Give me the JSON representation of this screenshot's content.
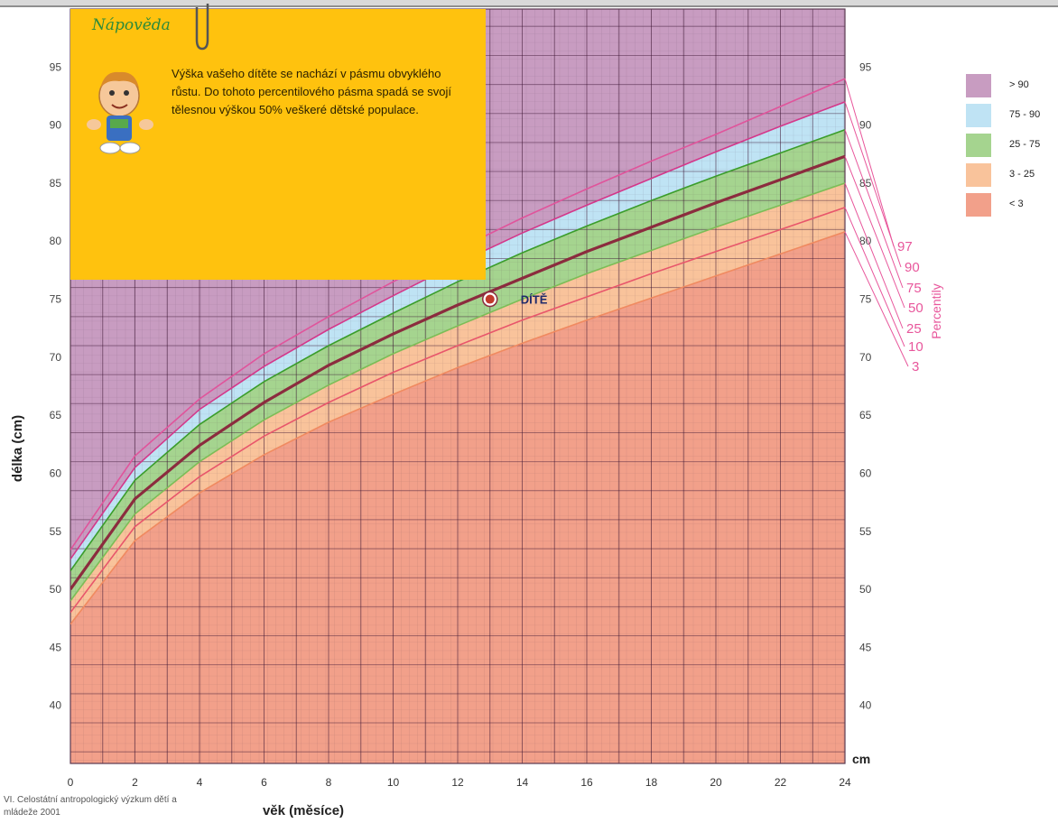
{
  "tooltip": {
    "title": "Nápověda",
    "text": "Výška vašeho dítěte se nachází v pásmu obvyklého růstu. Do tohoto percentilového pásma spadá se svojí tělesnou výškou 50% veškeré dětské populace."
  },
  "legend": [
    {
      "label": "> 90",
      "color": "#c89cc1"
    },
    {
      "label": "75 - 90",
      "color": "#bfe3f4"
    },
    {
      "label": "25 - 75",
      "color": "#a5d48f"
    },
    {
      "label": "3 - 25",
      "color": "#f9c39b"
    },
    {
      "label": "< 3",
      "color": "#f2a08a"
    }
  ],
  "source_text": "VI. Celostátní antropologický výzkum dětí a mládeže 2001",
  "chart_data": {
    "type": "line",
    "xlabel": "věk (měsíce)",
    "ylabel": "délka (cm)",
    "y_unit": "cm",
    "percentile_axis_label": "Percentily",
    "xlim": [
      0,
      24
    ],
    "ylim": [
      35,
      100
    ],
    "x_ticks": [
      "0",
      "2",
      "4",
      "6",
      "8",
      "10",
      "12",
      "14",
      "16",
      "18",
      "20",
      "22",
      "24"
    ],
    "y_ticks": [
      "40",
      "45",
      "50",
      "55",
      "60",
      "65",
      "70",
      "75",
      "80",
      "85",
      "90",
      "95"
    ],
    "x": [
      0,
      2,
      4,
      6,
      8,
      10,
      12,
      14,
      16,
      18,
      20,
      22,
      24
    ],
    "series": [
      {
        "name": "97",
        "color": "#e0549b",
        "values": [
          53.4,
          61.5,
          66.4,
          70.3,
          73.5,
          76.5,
          79.3,
          82.0,
          84.5,
          86.9,
          89.2,
          91.6,
          94.0
        ]
      },
      {
        "name": "90",
        "color": "#d4378a",
        "values": [
          52.6,
          60.5,
          65.5,
          69.2,
          72.4,
          75.3,
          78.1,
          80.7,
          83.1,
          85.4,
          87.7,
          89.9,
          92.0
        ]
      },
      {
        "name": "75",
        "color": "#3a9d2b",
        "values": [
          51.6,
          59.4,
          64.2,
          67.9,
          71.0,
          73.8,
          76.5,
          79.0,
          81.3,
          83.5,
          85.6,
          87.6,
          89.6
        ]
      },
      {
        "name": "50",
        "color": "#8b2c3e",
        "values": [
          50.0,
          57.8,
          62.4,
          66.1,
          69.3,
          72.0,
          74.5,
          76.8,
          79.1,
          81.2,
          83.3,
          85.3,
          87.3
        ]
      },
      {
        "name": "25",
        "color": "#7cbd56",
        "values": [
          49.0,
          56.5,
          61.0,
          64.6,
          67.6,
          70.3,
          72.7,
          75.0,
          77.2,
          79.2,
          81.2,
          83.1,
          85.0
        ]
      },
      {
        "name": "10",
        "color": "#e8566b",
        "values": [
          48.0,
          55.4,
          59.7,
          63.2,
          66.1,
          68.7,
          71.0,
          73.2,
          75.2,
          77.2,
          79.1,
          81.0,
          82.9
        ]
      },
      {
        "name": "3",
        "color": "#f08a60",
        "values": [
          47.0,
          54.2,
          58.3,
          61.6,
          64.4,
          66.8,
          69.1,
          71.2,
          73.2,
          75.1,
          77.0,
          78.9,
          80.8
        ]
      }
    ],
    "point": {
      "label": "DÍTĚ",
      "x": 13,
      "y": 75
    }
  }
}
